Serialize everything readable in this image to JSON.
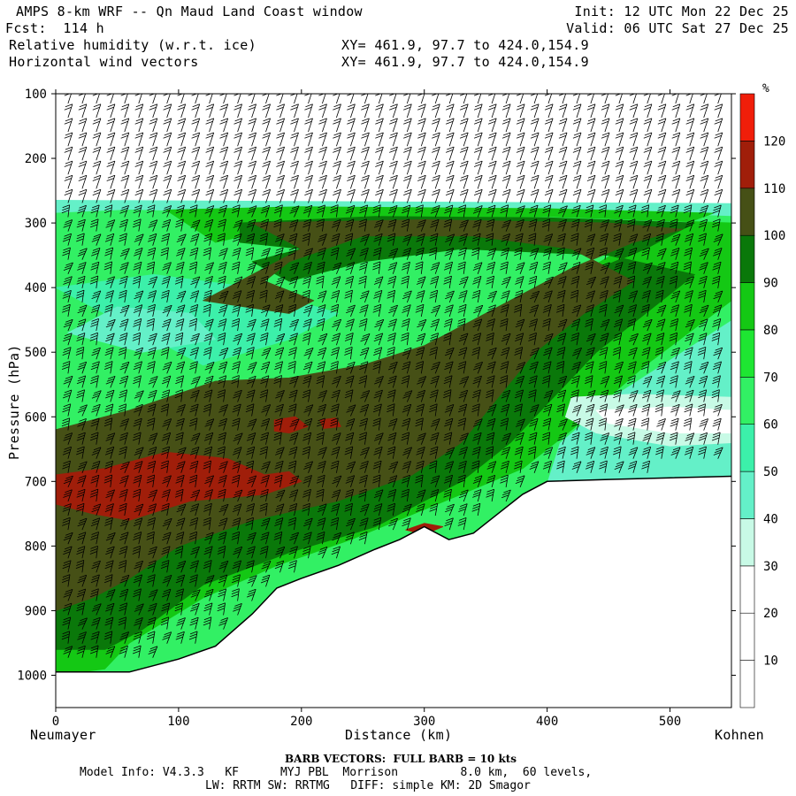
{
  "header": {
    "title": "AMPS 8-km WRF -- Qn Maud Land Coast window",
    "fcst": "Fcst:  114 h",
    "field1": "Relative humidity (w.r.t. ice)",
    "field2": "Horizontal wind vectors",
    "xy1": "XY= 461.9, 97.7 to 424.0,154.9",
    "xy2": "XY= 461.9, 97.7 to 424.0,154.9",
    "init": "Init: 12 UTC Mon 22 Dec 25",
    "valid": "Valid: 06 UTC Sat 27 Dec 25"
  },
  "footer": {
    "left_station": "Neumayer",
    "right_station": "Kohnen",
    "barb_note": "BARB VECTORS:  FULL BARB = 10 kts",
    "model_line1": "Model Info: V4.3.3   KF      MYJ PBL  Morrison         8.0 km,  60 levels,",
    "model_line2": "LW: RRTM SW: RRTMG   DIFF: simple KM: 2D Smagor"
  },
  "colorbar": {
    "unit": "%",
    "levels": [
      "10",
      "20",
      "30",
      "40",
      "50",
      "60",
      "70",
      "80",
      "90",
      "100",
      "110",
      "120"
    ],
    "colors": [
      "#ffffff",
      "#ffffff",
      "#ffffff",
      "#c8fae6",
      "#64f0c8",
      "#3cf0aa",
      "#32f064",
      "#1ee632",
      "#14c814",
      "#0a780a",
      "#465016",
      "#a01e0a",
      "#f01e0a"
    ]
  },
  "chart_data": {
    "type": "heatmap",
    "title": "Relative humidity (w.r.t. ice) cross section with horizontal wind vectors",
    "xlabel": "Distance (km)",
    "ylabel": "Pressure (hPa)",
    "xlim": [
      0,
      550
    ],
    "ylim": [
      1050,
      100
    ],
    "x_ticks": [
      0,
      100,
      200,
      300,
      400,
      500
    ],
    "y_ticks": [
      100,
      200,
      300,
      400,
      500,
      600,
      700,
      800,
      900,
      1000
    ],
    "terrain_surface": [
      [
        0,
        995
      ],
      [
        60,
        995
      ],
      [
        100,
        975
      ],
      [
        130,
        955
      ],
      [
        160,
        905
      ],
      [
        180,
        865
      ],
      [
        200,
        850
      ],
      [
        230,
        830
      ],
      [
        260,
        805
      ],
      [
        280,
        790
      ],
      [
        300,
        770
      ],
      [
        320,
        790
      ],
      [
        340,
        780
      ],
      [
        360,
        750
      ],
      [
        380,
        720
      ],
      [
        400,
        700
      ],
      [
        450,
        697
      ],
      [
        550,
        692
      ]
    ],
    "moist_layer_top_hPa": 265,
    "dry_layer_above": "upper troposphere RH below 30%",
    "rh_max_region": "110-120% pockets near 700 hPa between 0 and 160 km and near 610 hPa at 180-230 km",
    "low_rh_region": "30-50% pocket near 600 hPa between 420 and 550 km",
    "wind_barbs": "full barb = 10 kts"
  },
  "axes": {
    "x_labels": [
      "0",
      "100",
      "200",
      "300",
      "400",
      "500"
    ],
    "y_labels": [
      "100",
      "200",
      "300",
      "400",
      "500",
      "600",
      "700",
      "800",
      "900",
      "1000"
    ],
    "x_title": "Distance (km)",
    "y_title": "Pressure (hPa)"
  }
}
